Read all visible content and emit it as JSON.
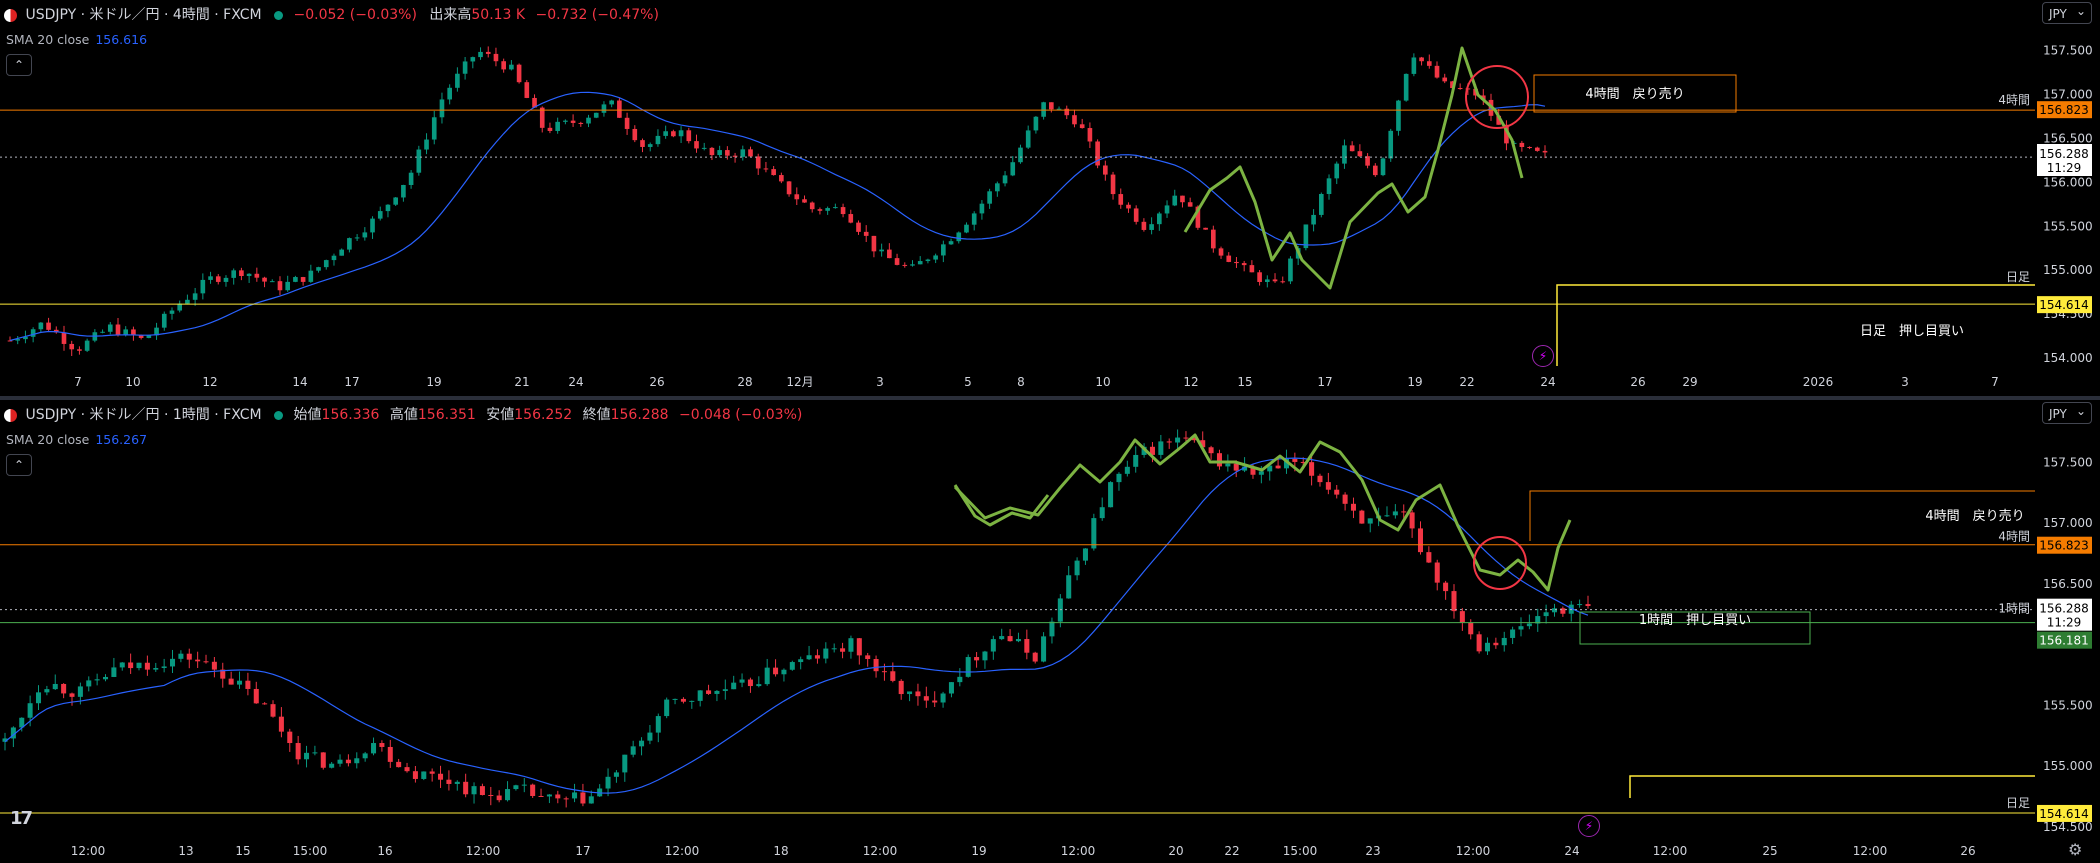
{
  "currency": "JPY",
  "top": {
    "title": "USDJPY · 米ドル／円 · 4時間 · FXCM",
    "change": "−0.052 (−0.03%)",
    "volume_label": "出来高",
    "volume_value": "50.13 K",
    "volume_change": "−0.732 (−0.47%)",
    "sma_label": "SMA 20 close",
    "sma_value": "156.616",
    "price_ticks": [
      "157.500",
      "157.000",
      "156.500",
      "156.000",
      "155.500",
      "155.000",
      "154.500",
      "154.000"
    ],
    "time_labels": [
      "7",
      "10",
      "12",
      "14",
      "17",
      "19",
      "21",
      "24",
      "26",
      "28",
      "12月",
      "3",
      "5",
      "8",
      "10",
      "12",
      "15",
      "17",
      "19",
      "22",
      "24",
      "26",
      "29",
      "2026",
      "3",
      "7"
    ],
    "line_labels": {
      "four_hour": "4時間",
      "daily": "日足"
    },
    "badges": {
      "four_hour": "156.823",
      "current": "156.288",
      "countdown": "11:29",
      "daily": "154.614"
    },
    "zones": {
      "sell": "4時間　戻り売り",
      "buy": "日足　押し目買い"
    }
  },
  "bottom": {
    "title": "USDJPY · 米ドル／円 · 1時間 · FXCM",
    "ohlc": {
      "o_label": "始値",
      "o": "156.336",
      "h_label": "高値",
      "h": "156.351",
      "l_label": "安値",
      "l": "156.252",
      "c_label": "終値",
      "c": "156.288",
      "change": "−0.048 (−0.03%)"
    },
    "sma_label": "SMA 20 close",
    "sma_value": "156.267",
    "price_ticks": [
      "157.500",
      "157.000",
      "156.500",
      "156.000",
      "155.500",
      "155.000",
      "154.500"
    ],
    "time_labels": [
      "12:00",
      "13",
      "15",
      "15:00",
      "16",
      "12:00",
      "17",
      "12:00",
      "18",
      "12:00",
      "19",
      "12:00",
      "20",
      "22",
      "15:00",
      "23",
      "12:00",
      "24",
      "12:00",
      "25",
      "12:00",
      "26"
    ],
    "line_labels": {
      "four_hour": "4時間",
      "one_hour": "1時間",
      "daily": "日足"
    },
    "badges": {
      "four_hour": "156.823",
      "current": "156.288",
      "countdown": "11:29",
      "one_hour": "156.181",
      "daily": "154.614"
    },
    "zones": {
      "sell": "4時間　戻り売り",
      "buy": "1時間　押し目買い"
    }
  },
  "colors": {
    "up": "#089981",
    "down": "#f23645",
    "sma": "#2962ff",
    "orange": "#f57c00",
    "yellow": "#ffeb3b",
    "green_line": "#7cb342",
    "circle": "#f23645",
    "buy_box": "#4caf50"
  },
  "chart_data": [
    {
      "type": "candlestick",
      "title": "USDJPY · 米ドル／円 · 4時間 · FXCM",
      "ylim": [
        153.75,
        157.85
      ],
      "y_ticks": [
        154.0,
        154.5,
        155.0,
        155.5,
        156.0,
        156.5,
        157.0,
        157.5
      ],
      "x": [
        "7",
        "10",
        "12",
        "14",
        "17",
        "19",
        "21",
        "24",
        "26",
        "28",
        "12月",
        "3",
        "5",
        "8",
        "10",
        "12",
        "15",
        "17",
        "19",
        "22",
        "24",
        "26",
        "29",
        "2026",
        "3",
        "7"
      ],
      "series": [
        {
          "name": "SMA 20 close",
          "last": 156.616
        }
      ],
      "levels": [
        {
          "label": "4時間",
          "value": 156.823
        },
        {
          "label": "日足",
          "value": 154.614
        },
        {
          "label": "",
          "value": 156.288
        }
      ]
    },
    {
      "type": "candlestick",
      "title": "USDJPY · 米ドル／円 · 1時間 · FXCM",
      "ylim": [
        154.35,
        157.85
      ],
      "y_ticks": [
        154.5,
        155.0,
        155.5,
        156.0,
        156.5,
        157.0,
        157.5
      ],
      "x": [
        "12:00",
        "13",
        "15",
        "15:00",
        "16",
        "12:00",
        "17",
        "12:00",
        "18",
        "12:00",
        "19",
        "12:00",
        "20",
        "22",
        "15:00",
        "23",
        "12:00",
        "24",
        "12:00",
        "25",
        "12:00",
        "26"
      ],
      "series": [
        {
          "name": "SMA 20 close",
          "last": 156.267
        }
      ],
      "levels": [
        {
          "label": "4時間",
          "value": 156.823
        },
        {
          "label": "1時間",
          "value": 156.181
        },
        {
          "label": "日足",
          "value": 154.614
        },
        {
          "label": "",
          "value": 156.288
        }
      ]
    }
  ]
}
